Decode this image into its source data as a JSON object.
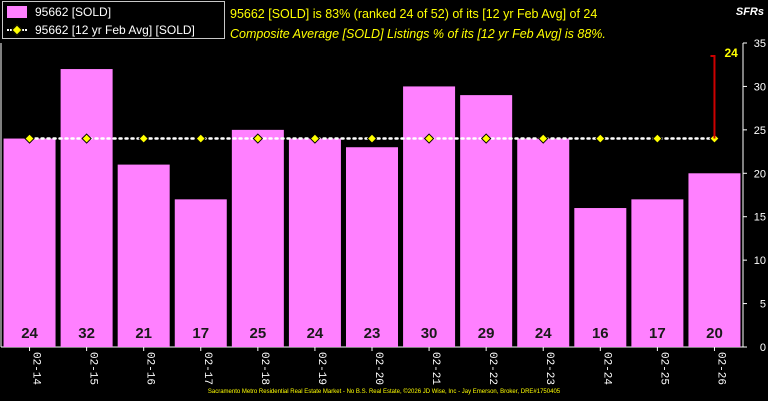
{
  "legend": {
    "series1_label": "95662 [SOLD]",
    "series2_label": "95662 [12 yr Feb Avg] [SOLD]"
  },
  "headline": "95662 [SOLD] is 83% (ranked 24 of 52) of its [12 yr Feb Avg] of 24",
  "composite_text": "Composite Average [SOLD] Listings % of its [12 yr Feb Avg] is 88%.",
  "unit_label": "SFRs",
  "footer": "Sacramento Metro Residential Real Estate Market - No B.S. Real Estate, ©2026 JD Wise, Inc - Jay Emerson, Broker, DRE#1750405",
  "colors": {
    "bar": "#ff80ff",
    "average_marker": "#ffff00",
    "average_line": "#ffffff",
    "callout": "#cc0000",
    "headline": "#ffff00"
  },
  "chart_data": {
    "type": "bar",
    "categories": [
      "02-14",
      "02-15",
      "02-16",
      "02-17",
      "02-18",
      "02-19",
      "02-20",
      "02-21",
      "02-22",
      "02-23",
      "02-24",
      "02-25",
      "02-26"
    ],
    "series": [
      {
        "name": "95662 [SOLD]",
        "values": [
          24,
          32,
          21,
          17,
          25,
          24,
          23,
          30,
          29,
          24,
          16,
          17,
          20
        ]
      },
      {
        "name": "95662 [12 yr Feb Avg] [SOLD]",
        "values": [
          24,
          24,
          24,
          24,
          24,
          24,
          24,
          24,
          24,
          24,
          24,
          24,
          24
        ]
      }
    ],
    "data_labels": [
      "24",
      "32",
      "21",
      "17",
      "25",
      "24",
      "23",
      "30",
      "29",
      "24",
      "16",
      "17",
      "20"
    ],
    "average_callout": "24",
    "yticks": [
      0,
      5,
      10,
      15,
      20,
      25,
      30,
      35
    ],
    "ylim": [
      0,
      35
    ],
    "ylabel": "SFRs",
    "xlabel": "",
    "grid": false,
    "legend_position": "top-left"
  }
}
